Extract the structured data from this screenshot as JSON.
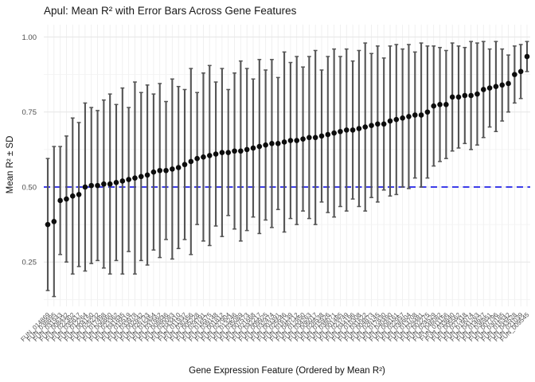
{
  "figure": {
    "title": "Apul: Mean R² with Error Bars Across Gene Features",
    "x_axis_title": "Gene Expression Feature (Ordered by Mean R²)",
    "y_axis_title": "Mean R² ± SD"
  },
  "chart_data": {
    "type": "scatter",
    "subtype": "points-with-error-bars",
    "title": "Apul: Mean R² with Error Bars Across Gene Features",
    "xlabel": "Gene Expression Feature (Ordered by Mean R²)",
    "ylabel": "Mean R² ± SD",
    "ylim": [
      0.08,
      1.04
    ],
    "yticks": [
      0.25,
      0.5,
      0.75,
      1.0
    ],
    "ytick_labels": [
      "0.25",
      "0.50",
      "0.75",
      "1.00"
    ],
    "minor_yticks": [
      0.125,
      0.375,
      0.625,
      0.875
    ],
    "grid": true,
    "legend": false,
    "reference_line": {
      "y": 0.5,
      "style": "dashed",
      "color": "#2222e8"
    },
    "categories": [
      "FUN_014869",
      "FUN_038895",
      "FUN_031943",
      "FUN_008432",
      "FUN_022302",
      "FUN_035817",
      "FUN_012264",
      "FUN_004150",
      "FUN_029232",
      "FUN_017498",
      "FUN_006860",
      "FUN_023362",
      "FUN_041845",
      "FUN_010519",
      "FUN_033978",
      "FUN_002642",
      "FUN_026733",
      "FUN_015454",
      "FUN_037662",
      "FUN_008846",
      "FUN_020083",
      "FUN_043410",
      "FUN_011937",
      "FUN_030356",
      "FUN_005228",
      "FUN_024791",
      "FUN_016575",
      "FUN_039148",
      "FUN_001812",
      "FUN_027904",
      "FUN_013246",
      "FUN_035089",
      "FUN_007573",
      "FUN_021668",
      "FUN_042217",
      "FUN_009925",
      "FUN_032474",
      "FUN_003391",
      "FUN_025646",
      "FUN_018139",
      "FUN_040712",
      "FUN_012850",
      "FUN_034263",
      "FUN_006017",
      "FUN_028538",
      "FUN_015926",
      "FUN_038071",
      "FUN_001485",
      "FUN_023749",
      "FUN_044196",
      "FUN_010308",
      "FUN_031622",
      "FUN_004873",
      "FUN_026145",
      "FUN_017830",
      "FUN_040490",
      "FUN_008161",
      "FUN_022957",
      "FUN_036604",
      "FUN_013708",
      "FUN_029481",
      "FUN_002275",
      "FUN_024529",
      "FUN_046082",
      "FUN_011156",
      "FUN_033840",
      "FUN_005562",
      "FUN_027318",
      "FUN_019074",
      "FUN_041263",
      "FUN_014627",
      "FUN_036951",
      "FUN_007796",
      "FUN_030185",
      "FUN_016342",
      "FUN_043528",
      "FUN_021039",
      "FUN_009545"
    ],
    "series": [
      {
        "name": "Mean R²",
        "values": [
          0.375,
          0.385,
          0.455,
          0.46,
          0.47,
          0.475,
          0.5,
          0.505,
          0.505,
          0.51,
          0.51,
          0.515,
          0.52,
          0.525,
          0.53,
          0.535,
          0.54,
          0.55,
          0.555,
          0.555,
          0.56,
          0.565,
          0.575,
          0.585,
          0.595,
          0.6,
          0.605,
          0.61,
          0.615,
          0.615,
          0.62,
          0.62,
          0.625,
          0.63,
          0.635,
          0.64,
          0.645,
          0.645,
          0.65,
          0.655,
          0.655,
          0.66,
          0.665,
          0.665,
          0.67,
          0.675,
          0.68,
          0.685,
          0.69,
          0.69,
          0.695,
          0.7,
          0.705,
          0.71,
          0.71,
          0.72,
          0.725,
          0.73,
          0.735,
          0.74,
          0.74,
          0.75,
          0.77,
          0.775,
          0.775,
          0.8,
          0.8,
          0.805,
          0.805,
          0.81,
          0.825,
          0.83,
          0.835,
          0.84,
          0.845,
          0.875,
          0.885,
          0.935
        ]
      },
      {
        "name": "SD",
        "values": [
          0.22,
          0.25,
          0.18,
          0.21,
          0.26,
          0.24,
          0.28,
          0.26,
          0.25,
          0.28,
          0.3,
          0.26,
          0.31,
          0.24,
          0.32,
          0.28,
          0.3,
          0.26,
          0.29,
          0.23,
          0.3,
          0.27,
          0.25,
          0.31,
          0.22,
          0.28,
          0.3,
          0.24,
          0.28,
          0.21,
          0.26,
          0.3,
          0.27,
          0.23,
          0.29,
          0.25,
          0.28,
          0.22,
          0.3,
          0.26,
          0.28,
          0.24,
          0.27,
          0.29,
          0.22,
          0.26,
          0.28,
          0.25,
          0.27,
          0.23,
          0.26,
          0.28,
          0.24,
          0.26,
          0.22,
          0.25,
          0.25,
          0.23,
          0.24,
          0.21,
          0.24,
          0.22,
          0.2,
          0.19,
          0.18,
          0.18,
          0.17,
          0.16,
          0.18,
          0.17,
          0.16,
          0.13,
          0.15,
          0.12,
          0.095,
          0.095,
          0.09,
          0.05
        ]
      }
    ],
    "colors": {
      "point": "#0d0d0d",
      "error_bar": "#545454",
      "grid_major": "#e6e6e6",
      "grid_minor": "#f2f2f2",
      "grid_vertical": "#ededed",
      "tick_text": "#4d4d4d",
      "reference": "#2222e8"
    }
  }
}
